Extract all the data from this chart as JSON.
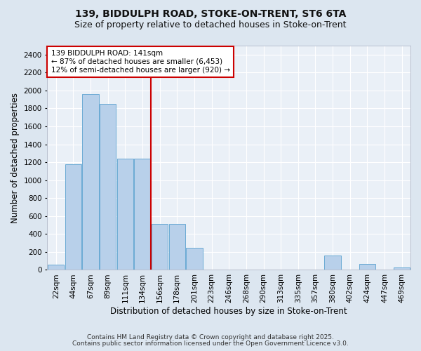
{
  "title_line1": "139, BIDDULPH ROAD, STOKE-ON-TRENT, ST6 6TA",
  "title_line2": "Size of property relative to detached houses in Stoke-on-Trent",
  "xlabel": "Distribution of detached houses by size in Stoke-on-Trent",
  "ylabel": "Number of detached properties",
  "categories": [
    "22sqm",
    "44sqm",
    "67sqm",
    "89sqm",
    "111sqm",
    "134sqm",
    "156sqm",
    "178sqm",
    "201sqm",
    "223sqm",
    "246sqm",
    "268sqm",
    "290sqm",
    "313sqm",
    "335sqm",
    "357sqm",
    "380sqm",
    "402sqm",
    "424sqm",
    "447sqm",
    "469sqm"
  ],
  "values": [
    60,
    1180,
    1960,
    1850,
    1240,
    1240,
    510,
    510,
    250,
    0,
    0,
    0,
    0,
    0,
    0,
    0,
    160,
    0,
    70,
    0,
    30
  ],
  "bar_color": "#b8d0ea",
  "bar_edge_color": "#6aaad4",
  "vline_position": 5.5,
  "vline_color": "#cc0000",
  "annotation_text": "139 BIDDULPH ROAD: 141sqm\n← 87% of detached houses are smaller (6,453)\n12% of semi-detached houses are larger (920) →",
  "annotation_box_color": "#ffffff",
  "annotation_box_edge": "#cc0000",
  "ylim": [
    0,
    2500
  ],
  "yticks": [
    0,
    200,
    400,
    600,
    800,
    1000,
    1200,
    1400,
    1600,
    1800,
    2000,
    2200,
    2400
  ],
  "footnote1": "Contains HM Land Registry data © Crown copyright and database right 2025.",
  "footnote2": "Contains public sector information licensed under the Open Government Licence v3.0.",
  "bg_color": "#dce6f0",
  "plot_bg_color": "#eaf0f7",
  "grid_color": "#ffffff",
  "title_fontsize": 10,
  "subtitle_fontsize": 9,
  "axis_label_fontsize": 8.5,
  "tick_fontsize": 7.5,
  "footnote_fontsize": 6.5
}
